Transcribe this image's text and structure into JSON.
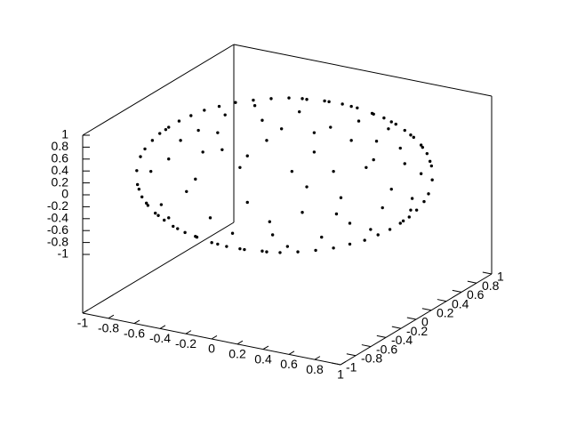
{
  "chart_data": {
    "type": "scatter",
    "projection": "3d",
    "title": "",
    "xlabel": "",
    "ylabel": "",
    "zlabel": "",
    "xlim": [
      -1,
      1
    ],
    "ylim": [
      -1,
      1
    ],
    "zlim": [
      -1,
      1
    ],
    "grid": false,
    "legend": "none",
    "marker_color": "#000000",
    "x_tick_labels": [
      "-1",
      "-0.8",
      "-0.6",
      "-0.4",
      "-0.2",
      "0",
      "0.2",
      "0.4",
      "0.6",
      "0.8",
      "1"
    ],
    "y_tick_labels": [
      "-1",
      "-0.8",
      "-0.6",
      "-0.4",
      "-0.2",
      "0",
      "0.2",
      "0.4",
      "0.6",
      "0.8",
      "1"
    ],
    "z_tick_labels": [
      "1",
      "0.8",
      "0.6",
      "0.4",
      "0.2",
      "0",
      "-0.2",
      "-0.4",
      "-0.6",
      "-0.8",
      "-1"
    ],
    "series": [
      {
        "description": "points on the unit circle region (x^2 + y^2 <= 1) at z = 0",
        "points_xyz": [
          [
            -0.995,
            0.06,
            0
          ],
          [
            -0.99,
            -0.12,
            0
          ],
          [
            -0.97,
            0.24,
            0
          ],
          [
            -0.96,
            -0.28,
            0
          ],
          [
            -0.94,
            0.34,
            0
          ],
          [
            -0.92,
            -0.39,
            0
          ],
          [
            -0.89,
            0.45,
            0
          ],
          [
            -0.87,
            -0.49,
            0
          ],
          [
            -0.84,
            0.54,
            0
          ],
          [
            -0.81,
            -0.58,
            0
          ],
          [
            -0.78,
            0.62,
            0
          ],
          [
            -0.75,
            -0.66,
            0
          ],
          [
            -0.71,
            0.7,
            0
          ],
          [
            -0.67,
            -0.74,
            0
          ],
          [
            -0.63,
            0.77,
            0
          ],
          [
            -0.59,
            -0.8,
            0
          ],
          [
            -0.54,
            0.84,
            0
          ],
          [
            -0.49,
            -0.87,
            0
          ],
          [
            -0.44,
            0.89,
            0
          ],
          [
            -0.39,
            -0.92,
            0
          ],
          [
            -0.33,
            0.94,
            0
          ],
          [
            -0.27,
            -0.96,
            0
          ],
          [
            -0.21,
            0.97,
            0
          ],
          [
            -0.15,
            -0.98,
            0
          ],
          [
            -0.09,
            0.99,
            0
          ],
          [
            -0.03,
            -0.999,
            0
          ],
          [
            0.03,
            0.999,
            0
          ],
          [
            0.09,
            -0.99,
            0
          ],
          [
            0.15,
            0.98,
            0
          ],
          [
            0.21,
            -0.97,
            0
          ],
          [
            0.27,
            0.96,
            0
          ],
          [
            0.33,
            -0.94,
            0
          ],
          [
            0.39,
            0.92,
            0
          ],
          [
            0.44,
            -0.89,
            0
          ],
          [
            0.49,
            0.87,
            0
          ],
          [
            0.54,
            -0.84,
            0
          ],
          [
            0.59,
            0.8,
            0
          ],
          [
            0.63,
            -0.77,
            0
          ],
          [
            0.67,
            0.74,
            0
          ],
          [
            0.71,
            -0.7,
            0
          ],
          [
            0.75,
            0.66,
            0
          ],
          [
            0.78,
            -0.62,
            0
          ],
          [
            0.81,
            0.58,
            0
          ],
          [
            0.84,
            -0.54,
            0
          ],
          [
            0.87,
            0.49,
            0
          ],
          [
            0.89,
            -0.45,
            0
          ],
          [
            0.92,
            0.39,
            0
          ],
          [
            0.94,
            -0.34,
            0
          ],
          [
            0.96,
            0.28,
            0
          ],
          [
            0.97,
            -0.24,
            0
          ],
          [
            0.99,
            0.12,
            0
          ],
          [
            0.995,
            -0.06,
            0
          ],
          [
            0.98,
            0.18,
            0
          ],
          [
            -0.98,
            -0.18,
            0
          ],
          [
            0.93,
            0.36,
            0
          ],
          [
            -0.93,
            -0.36,
            0
          ],
          [
            0.85,
            0.52,
            0
          ],
          [
            -0.85,
            -0.52,
            0
          ],
          [
            0.72,
            0.69,
            0
          ],
          [
            -0.72,
            -0.69,
            0
          ],
          [
            0.6,
            0.79,
            0
          ],
          [
            -0.6,
            -0.79,
            0
          ],
          [
            0.45,
            0.89,
            0
          ],
          [
            -0.45,
            -0.89,
            0
          ],
          [
            0.3,
            0.95,
            0
          ],
          [
            -0.3,
            -0.95,
            0
          ],
          [
            0.12,
            0.99,
            0
          ],
          [
            -0.12,
            -0.99,
            0
          ],
          [
            0.8,
            -0.59,
            0
          ],
          [
            -0.8,
            0.59,
            0
          ],
          [
            0.55,
            0.1,
            0
          ],
          [
            -0.42,
            0.33,
            0
          ],
          [
            0.12,
            -0.48,
            0
          ],
          [
            -0.66,
            -0.21,
            0
          ],
          [
            0.31,
            0.62,
            0
          ],
          [
            0.72,
            -0.18,
            0
          ],
          [
            -0.15,
            0.71,
            0
          ],
          [
            0.05,
            0.05,
            0
          ],
          [
            -0.5,
            -0.55,
            0
          ],
          [
            0.44,
            -0.62,
            0
          ],
          [
            0.2,
            0.3,
            0
          ],
          [
            -0.3,
            0.1,
            0
          ],
          [
            0.62,
            0.44,
            0
          ],
          [
            -0.78,
            0.21,
            0
          ],
          [
            0.81,
            0.15,
            0
          ],
          [
            -0.08,
            -0.77,
            0
          ],
          [
            0.38,
            -0.29,
            0
          ],
          [
            -0.58,
            0.58,
            0
          ],
          [
            0.1,
            0.82,
            0
          ],
          [
            -0.25,
            -0.35,
            0
          ],
          [
            0.66,
            -0.42,
            0
          ],
          [
            -0.7,
            0.45,
            0
          ],
          [
            0.25,
            -0.8,
            0
          ],
          [
            -0.4,
            0.78,
            0
          ],
          [
            0.5,
            0.7,
            0
          ],
          [
            -0.83,
            -0.38,
            0
          ],
          [
            0.86,
            -0.3,
            0
          ],
          [
            -0.12,
            0.45,
            0
          ],
          [
            0.33,
            0.05,
            0
          ],
          [
            -0.6,
            -0.05,
            0
          ],
          [
            0.15,
            -0.15,
            0
          ],
          [
            -0.35,
            -0.75,
            0
          ],
          [
            0.7,
            0.6,
            0
          ],
          [
            -0.2,
            0.9,
            0
          ],
          [
            0.58,
            -0.7,
            0
          ],
          [
            -0.9,
            0.05,
            0
          ],
          [
            0.92,
            0.02,
            0
          ],
          [
            0.02,
            -0.92,
            0
          ],
          [
            -0.02,
            0.6,
            0
          ],
          [
            0.45,
            0.45,
            0
          ],
          [
            -0.45,
            0.55,
            0
          ],
          [
            0.78,
            0.35,
            0
          ],
          [
            -0.78,
            -0.55,
            0
          ],
          [
            0.35,
            -0.5,
            0
          ],
          [
            -0.25,
            0.25,
            0
          ],
          [
            0.6,
            0.2,
            0
          ],
          [
            -0.55,
            0.3,
            0
          ],
          [
            0.2,
            0.55,
            0
          ],
          [
            -0.1,
            -0.6,
            0
          ],
          [
            0.85,
            -0.45,
            0
          ]
        ]
      }
    ]
  }
}
